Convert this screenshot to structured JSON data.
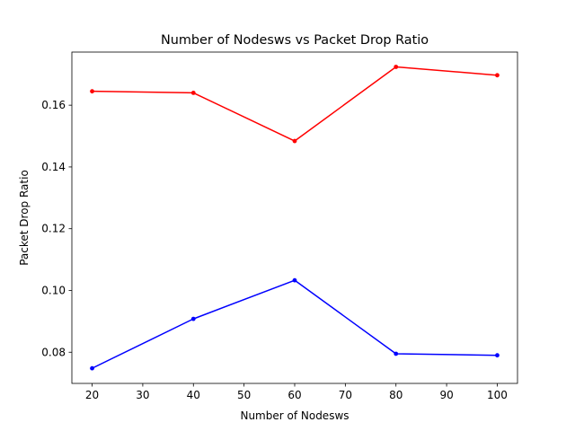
{
  "chart_data": {
    "type": "line",
    "title": "Number of Nodesws vs Packet Drop Ratio",
    "xlabel": "Number of Nodesws",
    "ylabel": "Packet Drop Ratio",
    "x": [
      20,
      40,
      60,
      80,
      100
    ],
    "xlim": [
      16,
      104
    ],
    "ylim": [
      0.0699,
      0.1772
    ],
    "xticks": [
      20,
      30,
      40,
      50,
      60,
      70,
      80,
      90,
      100
    ],
    "yticks": [
      0.08,
      0.1,
      0.12,
      0.14,
      0.16
    ],
    "ytick_labels": [
      "0.08",
      "0.10",
      "0.12",
      "0.14",
      "0.16"
    ],
    "grid": false,
    "legend": "none",
    "series": [
      {
        "color": "#ff0000",
        "marker": "point",
        "values": [
          0.1645,
          0.164,
          0.1484,
          0.1724,
          0.1697
        ]
      },
      {
        "color": "#0000ff",
        "marker": "point",
        "values": [
          0.0748,
          0.0908,
          0.1033,
          0.0795,
          0.079
        ]
      }
    ]
  }
}
